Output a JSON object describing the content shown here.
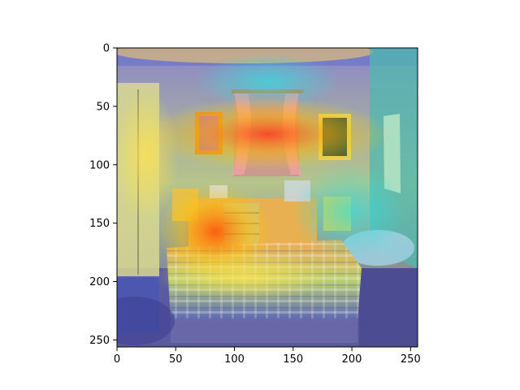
{
  "figure": {
    "image_description": "Bedroom photo (bed with plaid covers, dresser, chairs, posters, window with curtains, wardrobe) overlaid with a jet-colormap attention heatmap.",
    "extent": {
      "x": [
        0,
        256
      ],
      "y": [
        0,
        256
      ]
    }
  },
  "axes": {
    "x_ticks": [
      0,
      50,
      100,
      150,
      200,
      250
    ],
    "y_ticks": [
      0,
      50,
      100,
      150,
      200,
      250
    ],
    "x_tick_labels": [
      "0",
      "50",
      "100",
      "150",
      "200",
      "250"
    ],
    "y_tick_labels": [
      "0",
      "50",
      "100",
      "150",
      "200",
      "250"
    ]
  }
}
